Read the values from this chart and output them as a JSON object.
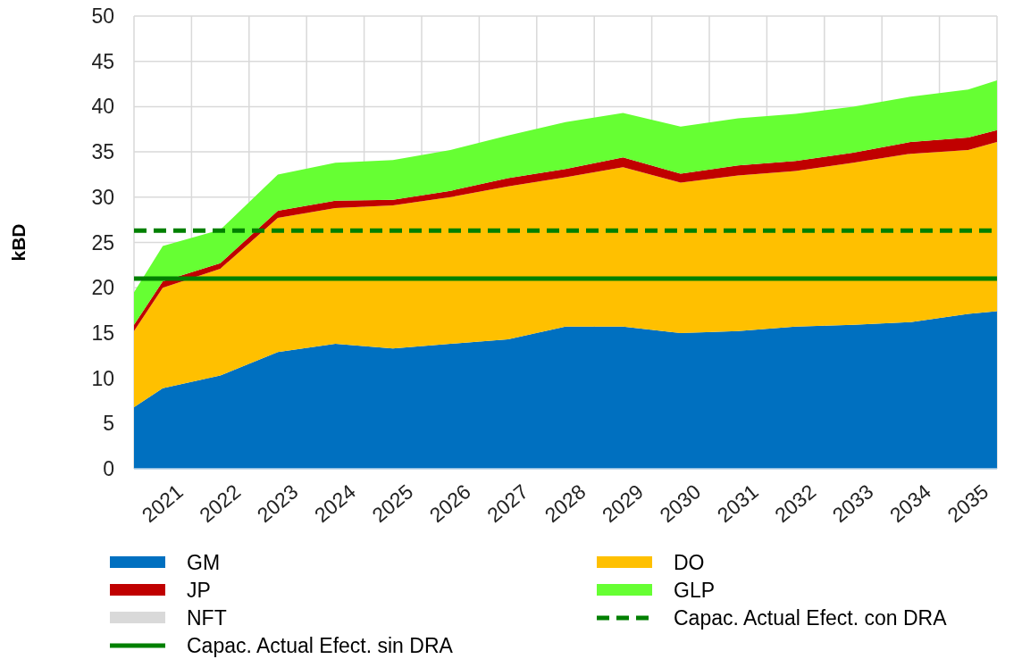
{
  "chart_data": {
    "type": "area",
    "stacked": true,
    "ylabel": "kBD",
    "x": [
      2020.5,
      2021,
      2022,
      2023,
      2024,
      2025,
      2026,
      2027,
      2028,
      2029,
      2030,
      2031,
      2032,
      2033,
      2034,
      2035,
      2035.5
    ],
    "series": [
      {
        "name": "GM",
        "color": "#0070c0",
        "values": [
          6.8,
          8.9,
          10.3,
          12.9,
          13.8,
          13.3,
          13.8,
          14.3,
          15.7,
          15.7,
          15.0,
          15.2,
          15.7,
          15.9,
          16.2,
          17.1,
          17.4
        ]
      },
      {
        "name": "DO",
        "color": "#ffc000",
        "values": [
          8.4,
          11.1,
          11.8,
          14.8,
          15.0,
          15.8,
          16.2,
          16.9,
          16.5,
          17.6,
          16.6,
          17.2,
          17.2,
          17.9,
          18.6,
          18.1,
          18.7
        ]
      },
      {
        "name": "JP",
        "color": "#c00000",
        "values": [
          0.7,
          0.7,
          0.6,
          0.8,
          0.8,
          0.6,
          0.7,
          0.9,
          0.9,
          1.1,
          1.0,
          1.1,
          1.1,
          1.1,
          1.3,
          1.4,
          1.3
        ]
      },
      {
        "name": "GLP",
        "color": "#66ff33",
        "values": [
          3.6,
          3.9,
          3.7,
          4.0,
          4.2,
          4.4,
          4.5,
          4.7,
          5.2,
          4.9,
          5.2,
          5.2,
          5.2,
          5.1,
          5.0,
          5.3,
          5.5
        ]
      },
      {
        "name": "NFT",
        "color": "#d9d9d9",
        "values": [
          null,
          null,
          null,
          null,
          null,
          null,
          null,
          null,
          null,
          null,
          null,
          null,
          null,
          null,
          null,
          null,
          null
        ]
      }
    ],
    "ref_lines": [
      {
        "axis": "y",
        "value": 26.3,
        "label": "Capac. Actual Efect. con DRA",
        "color": "#008000",
        "line_style": "dashed"
      },
      {
        "axis": "y",
        "value": 21.0,
        "label": "Capac. Actual Efect. sin DRA",
        "color": "#008000",
        "line_style": "solid"
      }
    ],
    "xlim": [
      2020.5,
      2035.5
    ],
    "xticks": [
      {
        "value": 2020.5,
        "label": null
      },
      2021,
      {
        "value": 2021.5,
        "label": null
      },
      2022,
      {
        "value": 2022.5,
        "label": null
      },
      2023,
      {
        "value": 2023.5,
        "label": null
      },
      2024,
      {
        "value": 2024.5,
        "label": null
      },
      2025,
      {
        "value": 2025.5,
        "label": null
      },
      2026,
      {
        "value": 2026.5,
        "label": null
      },
      2027,
      {
        "value": 2027.5,
        "label": null
      },
      2028,
      {
        "value": 2028.5,
        "label": null
      },
      2029,
      {
        "value": 2029.5,
        "label": null
      },
      2030,
      {
        "value": 2030.5,
        "label": null
      },
      2031,
      {
        "value": 2031.5,
        "label": null
      },
      2032,
      {
        "value": 2032.5,
        "label": null
      },
      2033,
      {
        "value": 2033.5,
        "label": null
      },
      2034,
      {
        "value": 2034.5,
        "label": null
      },
      2035,
      {
        "value": 2035.5,
        "label": null
      }
    ],
    "ylim": [
      0,
      50
    ],
    "yticks": [
      0,
      5,
      10,
      15,
      20,
      25,
      30,
      35,
      40,
      45,
      50
    ],
    "grid": true,
    "legend": "bottom"
  }
}
